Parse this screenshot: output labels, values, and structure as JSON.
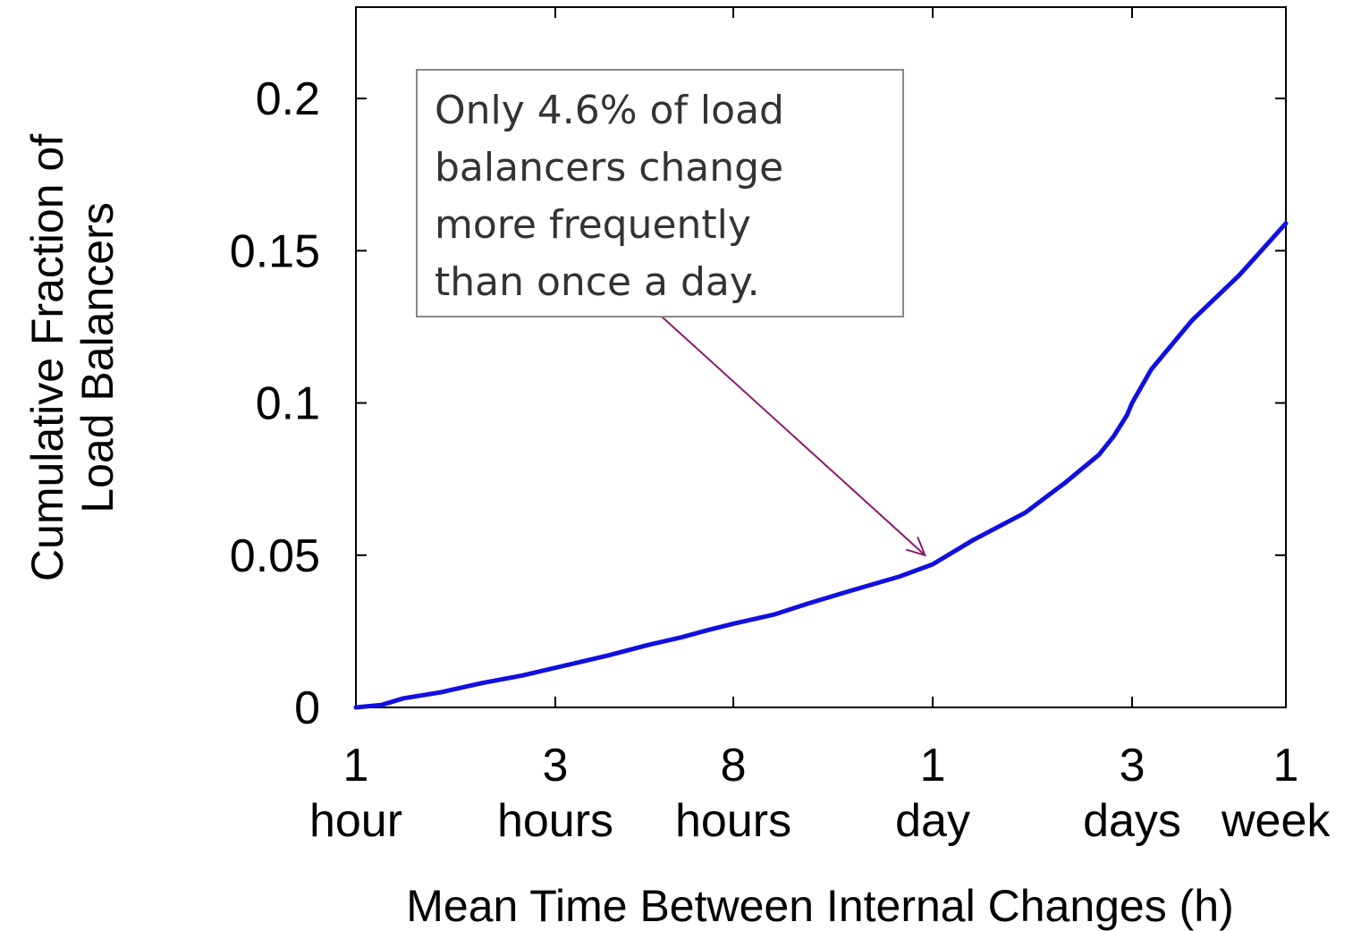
{
  "chart_data": {
    "type": "line",
    "xlabel": "Mean Time Between Internal Changes (h)",
    "ylabel_lines": [
      "Cumulative Fraction of",
      "Load Balancers"
    ],
    "x_scale": "log",
    "xlim": [
      1,
      168
    ],
    "ylim": [
      0,
      0.23
    ],
    "x_ticks": [
      {
        "value": 1,
        "line1": "1",
        "line2": "hour"
      },
      {
        "value": 3,
        "line1": "3",
        "line2": "hours"
      },
      {
        "value": 8,
        "line1": "8",
        "line2": "hours"
      },
      {
        "value": 24,
        "line1": "1",
        "line2": "day"
      },
      {
        "value": 72,
        "line1": "3",
        "line2": "days"
      },
      {
        "value": 168,
        "line1": "1",
        "line2": "week"
      }
    ],
    "y_ticks": [
      {
        "value": 0,
        "label": "0"
      },
      {
        "value": 0.05,
        "label": "0.05"
      },
      {
        "value": 0.1,
        "label": "0.1"
      },
      {
        "value": 0.15,
        "label": "0.15"
      },
      {
        "value": 0.2,
        "label": "0.2"
      }
    ],
    "grid": false,
    "series": [
      {
        "color": "#1010e0",
        "x": [
          1,
          1.15,
          1.3,
          1.6,
          2.0,
          2.5,
          3.0,
          4.0,
          5.0,
          6.0,
          7.0,
          8.0,
          10.0,
          12.0,
          15.0,
          20.0,
          24.0,
          30.0,
          40.0,
          50.0,
          60.0,
          65.0,
          70.0,
          72.0,
          80.0,
          100.0,
          130.0,
          168.0
        ],
        "y": [
          0,
          0.0008,
          0.003,
          0.005,
          0.008,
          0.0105,
          0.013,
          0.017,
          0.0205,
          0.023,
          0.0255,
          0.0275,
          0.0305,
          0.034,
          0.038,
          0.043,
          0.047,
          0.055,
          0.064,
          0.074,
          0.083,
          0.089,
          0.096,
          0.1,
          0.111,
          0.127,
          0.142,
          0.159
        ]
      }
    ],
    "annotation": {
      "lines": [
        "Only 4.6% of load",
        "balancers change",
        "more frequently",
        "than once a day."
      ],
      "arrow_color": "#8b1a6b",
      "points_to": {
        "x": 23,
        "y": 0.05
      }
    }
  }
}
